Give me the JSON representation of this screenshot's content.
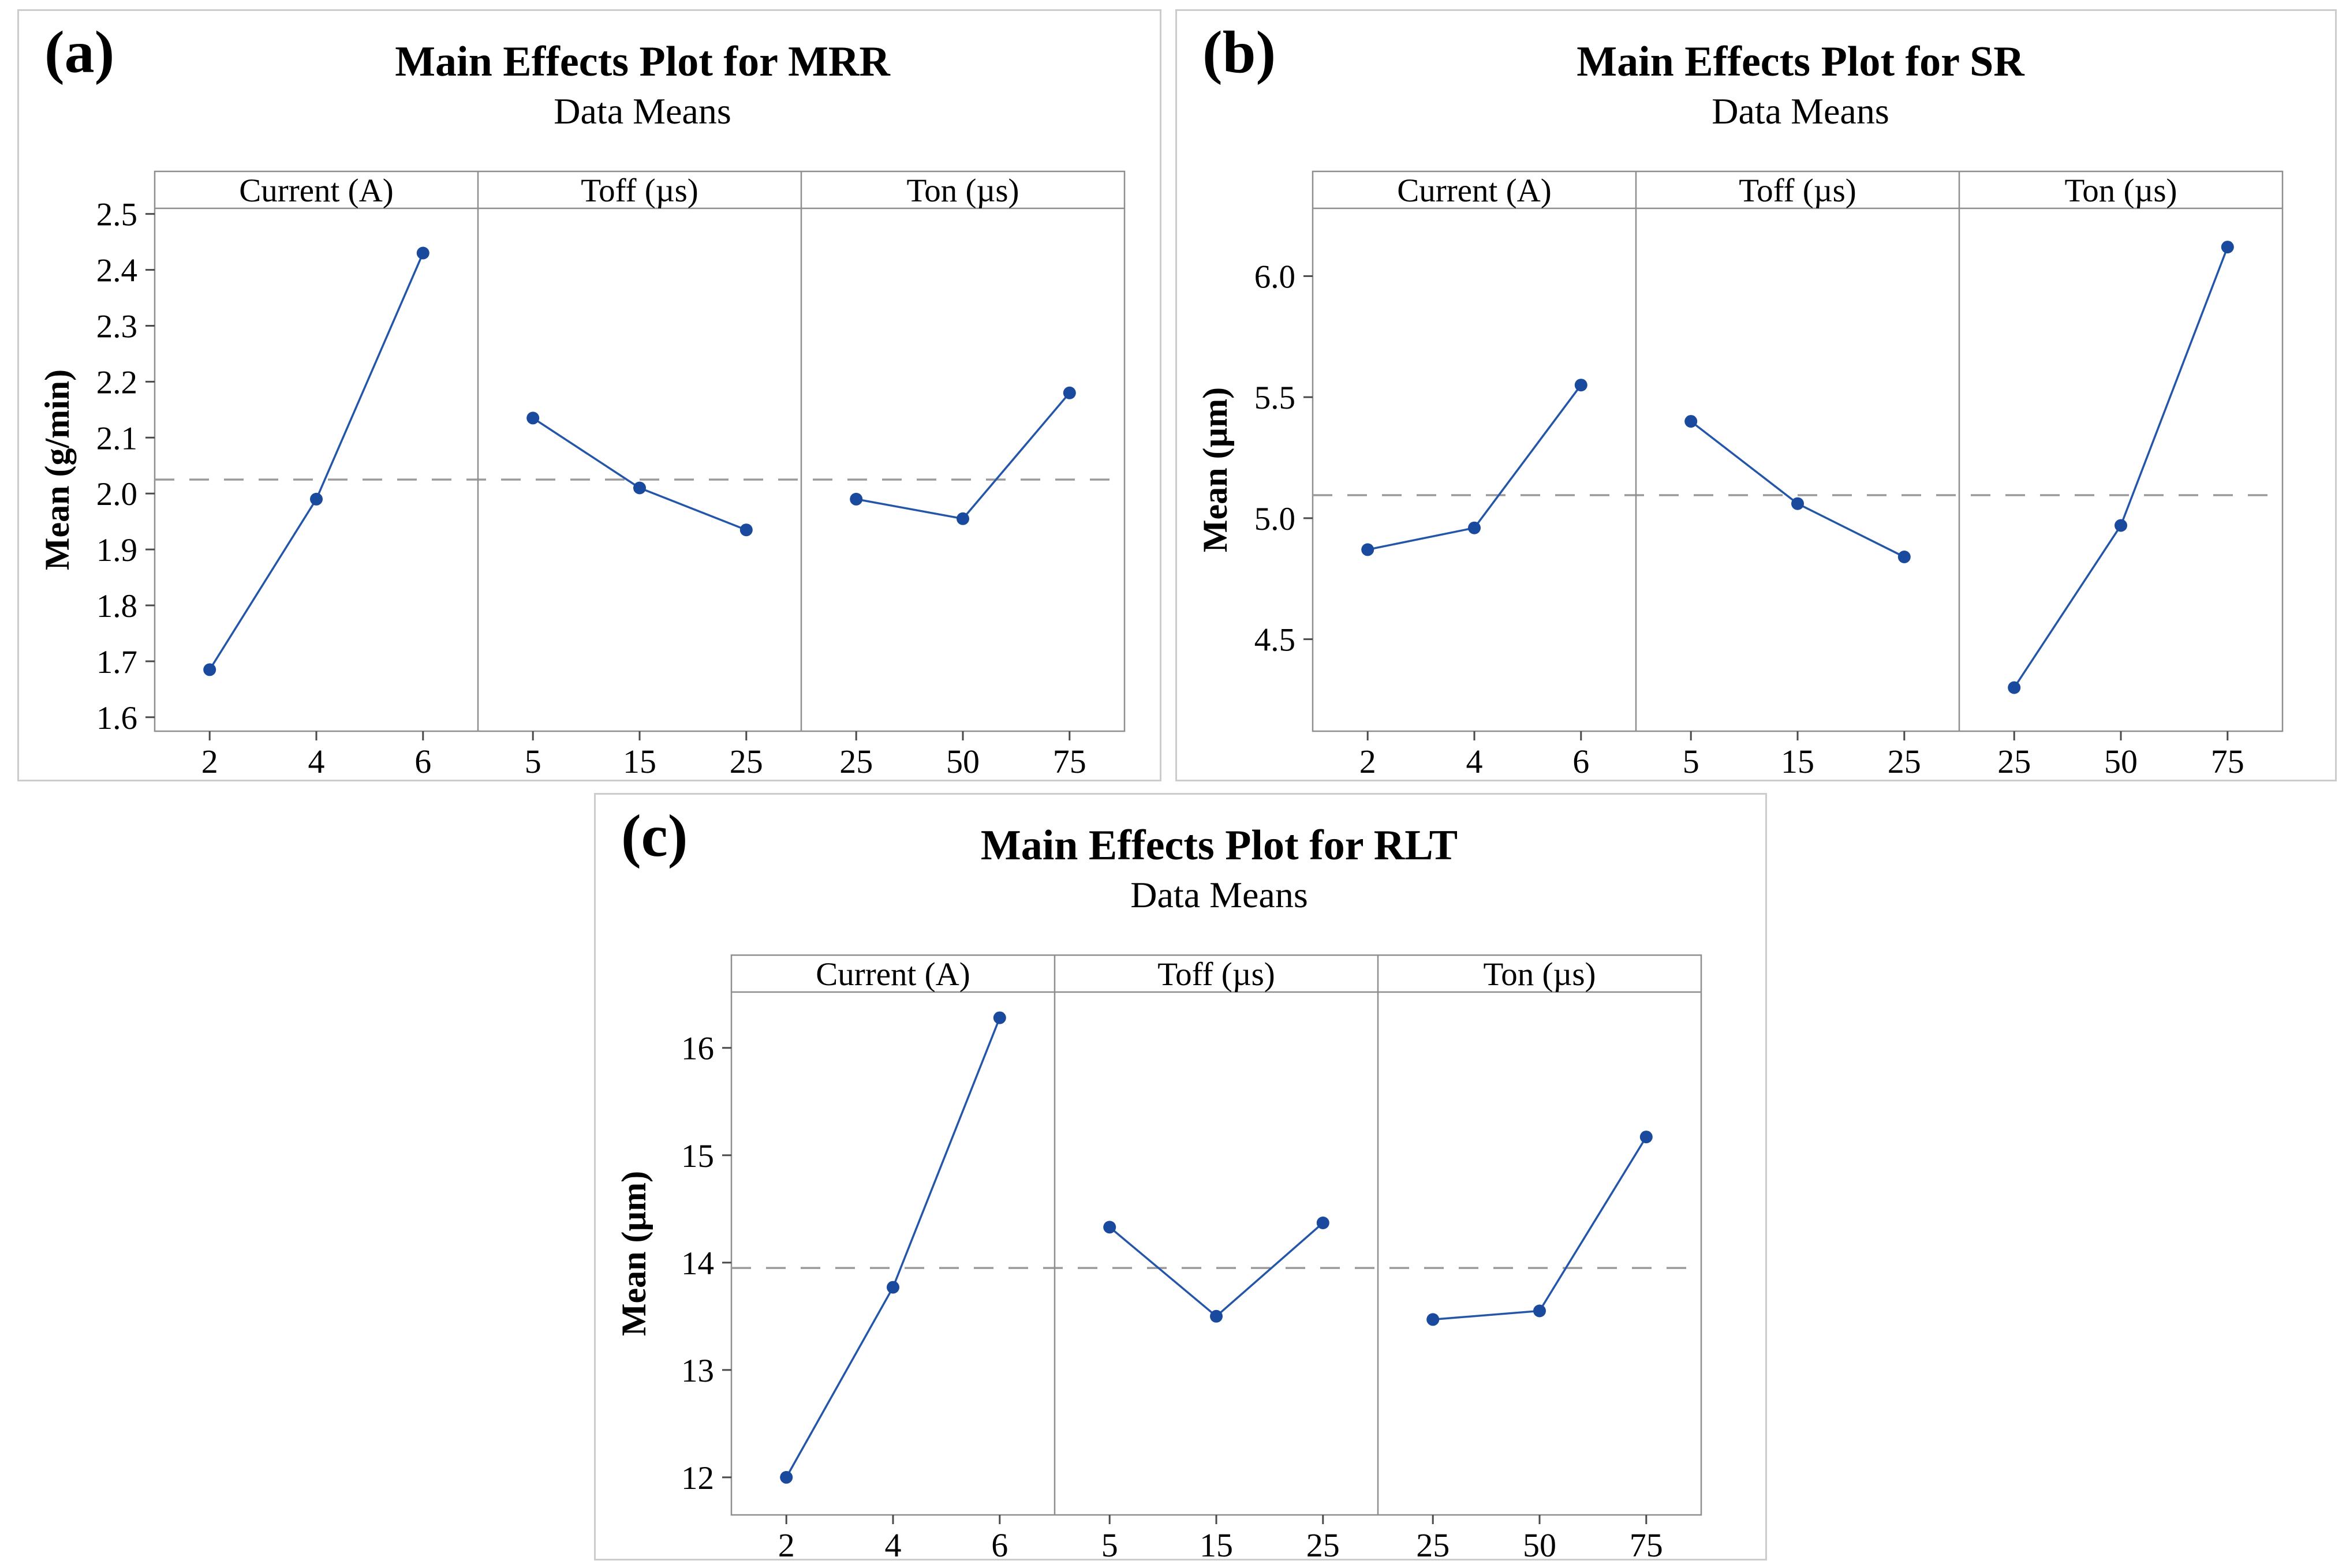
{
  "page": {
    "background": "#ffffff"
  },
  "style": {
    "series_line_color": "#2356a8",
    "marker_color": "#1a4a9e",
    "mean_line_color": "#9a9a9a",
    "panel_border_color": "#8e8e8e",
    "tick_color": "#4a4a4a",
    "figure_border_color": "#cccccc",
    "text_color": "#000000",
    "background": "#ffffff"
  },
  "chart_data": [
    {
      "type": "line",
      "panel_label": "(a)",
      "title": "Main Effects Plot for MRR",
      "subtitle": "Data Means",
      "ylabel": "Mean (g/min)",
      "ylim": [
        1.575,
        2.51
      ],
      "grand_mean": 2.025,
      "grid": false,
      "yticks": [
        {
          "v": 2.5,
          "label": "2.5"
        },
        {
          "v": 2.4,
          "label": "2.4"
        },
        {
          "v": 2.3,
          "label": "2.3"
        },
        {
          "v": 2.2,
          "label": "2.2"
        },
        {
          "v": 2.1,
          "label": "2.1"
        },
        {
          "v": 2.0,
          "label": "2.0"
        },
        {
          "v": 1.9,
          "label": "1.9"
        },
        {
          "v": 1.8,
          "label": "1.8"
        },
        {
          "v": 1.7,
          "label": "1.7"
        },
        {
          "v": 1.6,
          "label": "1.6"
        }
      ],
      "panels": [
        {
          "header": "Current (A)",
          "categories": [
            "2",
            "4",
            "6"
          ],
          "values": [
            1.685,
            1.99,
            2.43
          ]
        },
        {
          "header": "Toff (µs)",
          "categories": [
            "5",
            "15",
            "25"
          ],
          "values": [
            2.135,
            2.01,
            1.935
          ]
        },
        {
          "header": "Ton (µs)",
          "categories": [
            "25",
            "50",
            "75"
          ],
          "values": [
            1.99,
            1.955,
            2.18
          ]
        }
      ]
    },
    {
      "type": "line",
      "panel_label": "(b)",
      "title": "Main Effects Plot for SR",
      "subtitle": "Data Means",
      "ylabel": "Mean (µm)",
      "ylim": [
        4.12,
        6.28
      ],
      "grand_mean": 5.095,
      "grid": false,
      "yticks": [
        {
          "v": 6.0,
          "label": "6.0"
        },
        {
          "v": 5.5,
          "label": "5.5"
        },
        {
          "v": 5.0,
          "label": "5.0"
        },
        {
          "v": 4.5,
          "label": "4.5"
        }
      ],
      "panels": [
        {
          "header": "Current (A)",
          "categories": [
            "2",
            "4",
            "6"
          ],
          "values": [
            4.87,
            4.96,
            5.55
          ]
        },
        {
          "header": "Toff (µs)",
          "categories": [
            "5",
            "15",
            "25"
          ],
          "values": [
            5.4,
            5.06,
            4.84
          ]
        },
        {
          "header": "Ton (µs)",
          "categories": [
            "25",
            "50",
            "75"
          ],
          "values": [
            4.3,
            4.97,
            6.12
          ]
        }
      ]
    },
    {
      "type": "line",
      "panel_label": "(c)",
      "title": "Main Effects Plot for RLT",
      "subtitle": "Data Means",
      "ylabel": "Mean (µm)",
      "ylim": [
        11.65,
        16.52
      ],
      "grand_mean": 13.95,
      "grid": false,
      "yticks": [
        {
          "v": 16,
          "label": "16"
        },
        {
          "v": 15,
          "label": "15"
        },
        {
          "v": 14,
          "label": "14"
        },
        {
          "v": 13,
          "label": "13"
        },
        {
          "v": 12,
          "label": "12"
        }
      ],
      "panels": [
        {
          "header": "Current (A)",
          "categories": [
            "2",
            "4",
            "6"
          ],
          "values": [
            12.0,
            13.77,
            16.28
          ]
        },
        {
          "header": "Toff (µs)",
          "categories": [
            "5",
            "15",
            "25"
          ],
          "values": [
            14.33,
            13.5,
            14.37
          ]
        },
        {
          "header": "Ton (µs)",
          "categories": [
            "25",
            "50",
            "75"
          ],
          "values": [
            13.47,
            13.55,
            15.17
          ]
        }
      ]
    }
  ]
}
